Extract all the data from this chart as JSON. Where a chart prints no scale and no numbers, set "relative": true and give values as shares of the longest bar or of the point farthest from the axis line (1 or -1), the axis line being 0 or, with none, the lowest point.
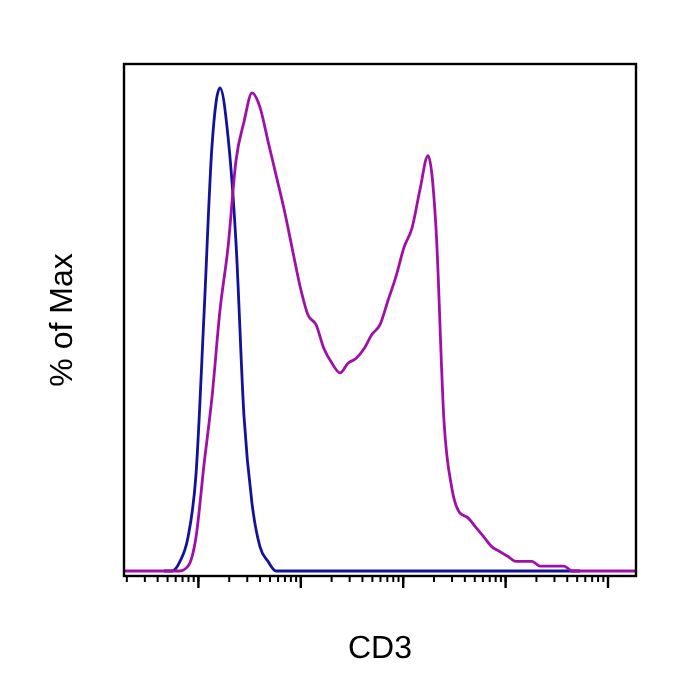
{
  "chart_data": {
    "type": "line",
    "relative": true,
    "xlabel": "CD3",
    "ylabel": "% of Max",
    "marker": "none",
    "line_style": "solid",
    "grid": false,
    "categories": [
      null,
      null,
      null,
      null,
      null,
      null,
      null,
      null,
      null,
      null,
      null,
      null,
      null,
      null,
      null,
      null,
      null,
      null,
      null,
      null,
      null,
      null,
      null,
      null,
      null,
      null,
      null,
      null,
      null,
      null,
      null,
      null,
      null,
      null,
      null,
      null,
      null,
      null,
      null,
      null,
      null,
      null,
      null,
      null,
      null,
      null,
      null,
      null,
      null,
      null,
      null,
      null,
      null,
      null,
      null,
      null,
      null,
      null,
      null,
      null,
      null,
      null,
      null,
      null,
      null
    ],
    "series": [
      {
        "color": "#12129a",
        "values": [
          null,
          null,
          null,
          null,
          null,
          0,
          0,
          0.02,
          0.07,
          0.2,
          0.53,
          0.88,
          1,
          0.9,
          0.68,
          0.32,
          0.14,
          0.05,
          0.02,
          0,
          0,
          0,
          0,
          0,
          0,
          0,
          0,
          0,
          0,
          0,
          0,
          0,
          0,
          0,
          0,
          0,
          0,
          0,
          0,
          0,
          0,
          0,
          0,
          0,
          0,
          0,
          0,
          0,
          0,
          0,
          0,
          0,
          0,
          0,
          0,
          0,
          0,
          0,
          null,
          null,
          null,
          null,
          null,
          null,
          null
        ]
      },
      {
        "color": "#a010a8",
        "values": [
          0,
          0,
          0,
          0,
          0,
          0,
          0,
          0,
          0.01,
          0.07,
          0.22,
          0.36,
          0.54,
          0.67,
          0.85,
          0.93,
          0.99,
          0.96,
          0.89,
          0.82,
          0.75,
          0.67,
          0.59,
          0.53,
          0.51,
          0.46,
          0.43,
          0.41,
          0.43,
          0.44,
          0.46,
          0.49,
          0.51,
          0.56,
          0.61,
          0.67,
          0.71,
          0.79,
          0.86,
          0.71,
          0.31,
          0.17,
          0.12,
          0.11,
          0.09,
          0.07,
          0.05,
          0.04,
          0.03,
          0.02,
          0.02,
          0.02,
          0.01,
          0.01,
          0.01,
          0.01,
          0,
          0,
          0,
          0,
          0,
          0,
          0,
          0,
          0
        ]
      }
    ]
  }
}
